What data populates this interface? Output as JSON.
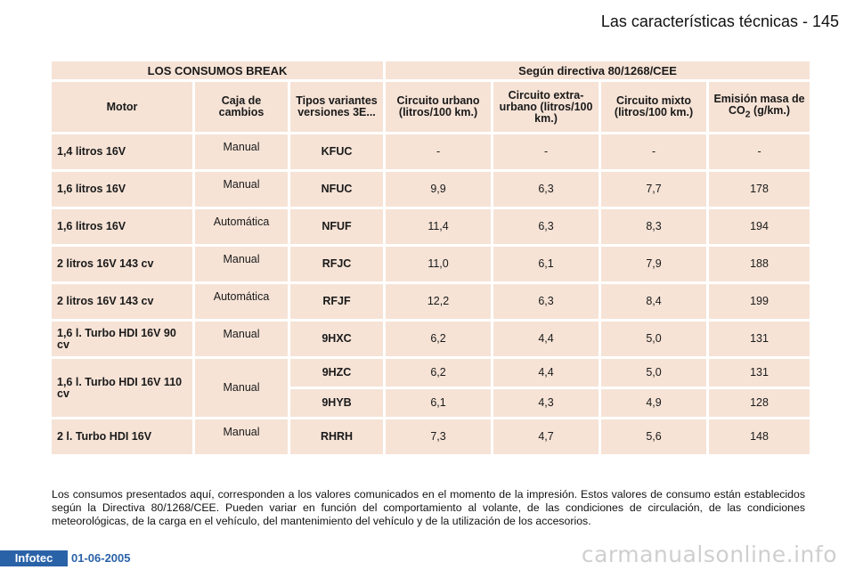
{
  "header": {
    "title": "Las características técnicas - 145"
  },
  "table": {
    "title_left": "LOS CONSUMOS BREAK",
    "title_right": "Según directiva 80/1268/CEE",
    "columns": {
      "motor": "Motor",
      "gearbox": "Caja de cambios",
      "types": "Tipos variantes versiones 3E...",
      "urban": "Circuito urbano (litros/100 km.)",
      "extra_urban": "Circuito extra-urbano (litros/100 km.)",
      "mixed": "Circuito mixto (litros/100 km.)",
      "emission_prefix": "Emisión masa de CO",
      "emission_sub": "2",
      "emission_suffix": " (g/km.)"
    },
    "rows": [
      {
        "motor": "1,4 litros 16V",
        "gearbox": "Manual",
        "code": "KFUC",
        "urban": "-",
        "extra_urban": "-",
        "mixed": "-",
        "co2": "-"
      },
      {
        "motor": "1,6 litros 16V",
        "gearbox": "Manual",
        "code": "NFUC",
        "urban": "9,9",
        "extra_urban": "6,3",
        "mixed": "7,7",
        "co2": "178"
      },
      {
        "motor": "1,6 litros 16V",
        "gearbox": "Automática",
        "code": "NFUF",
        "urban": "11,4",
        "extra_urban": "6,3",
        "mixed": "8,3",
        "co2": "194"
      },
      {
        "motor": "2 litros 16V 143 cv",
        "gearbox": "Manual",
        "code": "RFJC",
        "urban": "11,0",
        "extra_urban": "6,1",
        "mixed": "7,9",
        "co2": "188"
      },
      {
        "motor": "2 litros 16V 143 cv",
        "gearbox": "Automática",
        "code": "RFJF",
        "urban": "12,2",
        "extra_urban": "6,3",
        "mixed": "8,4",
        "co2": "199"
      },
      {
        "motor": "1,6 l. Turbo HDI 16V 90 cv",
        "gearbox": "Manual",
        "code": "9HXC",
        "urban": "6,2",
        "extra_urban": "4,4",
        "mixed": "5,0",
        "co2": "131"
      },
      {
        "motor": "1,6 l. Turbo HDI 16V 110 cv",
        "gearbox": "Manual",
        "code": "9HZC",
        "urban": "6,2",
        "extra_urban": "4,4",
        "mixed": "5,0",
        "co2": "131"
      },
      {
        "code": "9HYB",
        "urban": "6,1",
        "extra_urban": "4,3",
        "mixed": "4,9",
        "co2": "128"
      },
      {
        "motor": "2 l. Turbo HDI 16V",
        "gearbox": "Manual",
        "code": "RHRH",
        "urban": "7,3",
        "extra_urban": "4,7",
        "mixed": "5,6",
        "co2": "148"
      }
    ]
  },
  "note": "Los consumos presentados aquí, corresponden a los valores comunicados en el momento de la impresión. Estos valores de consumo están establecidos según la Directiva 80/1268/CEE. Pueden variar en función del comportamiento al volante, de las condiciones de circulación, de las condiciones meteorológicas, de la carga en el vehículo, del mantenimiento del vehículo y de la utilización de los accesorios.",
  "footer": {
    "logo": "Infotec",
    "date": "01-06-2005"
  },
  "watermark": "carmanualsonline.info",
  "colors": {
    "cell_bg": "#f6e3d6",
    "footer_blue": "#2a62a8"
  }
}
